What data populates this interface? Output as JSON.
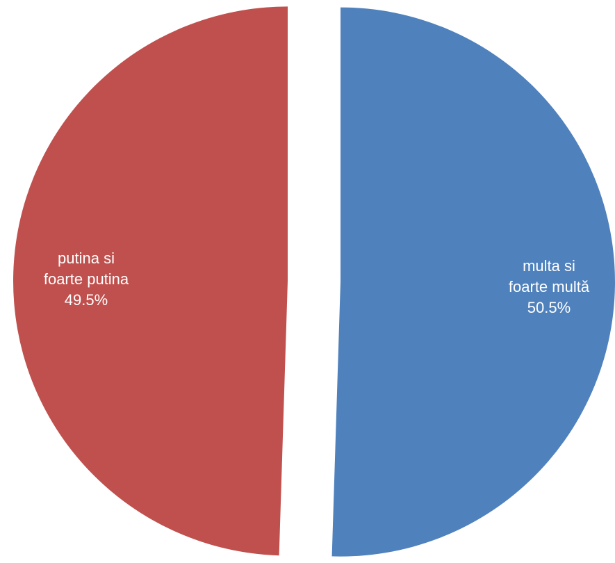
{
  "chart_data": {
    "type": "pie",
    "exploded": true,
    "slices": [
      {
        "label_lines": [
          "multa si",
          "foarte multă"
        ],
        "value": 50.5,
        "value_label": "50.5%",
        "color": "#4F81BD"
      },
      {
        "label_lines": [
          "putina si",
          "foarte putina"
        ],
        "value": 49.5,
        "value_label": "49.5%",
        "color": "#C0504D"
      }
    ]
  }
}
